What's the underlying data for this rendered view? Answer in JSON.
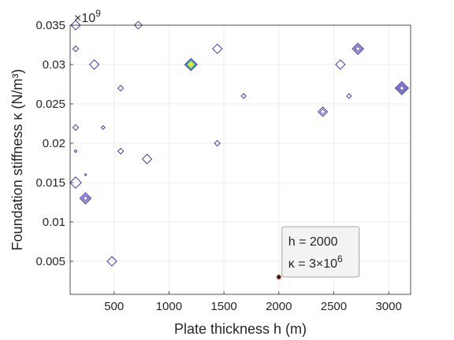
{
  "chart_data": {
    "type": "contour",
    "xlabel": "Plate thickness h (m)",
    "ylabel": "Foundation stiffness κ (N/m³)",
    "y_exponent_label": "×10",
    "y_exponent_power": "9",
    "xlim": [
      100,
      3200
    ],
    "ylim": [
      0.0008,
      0.035
    ],
    "xticks": [
      500,
      1000,
      1500,
      2000,
      2500,
      3000
    ],
    "xtick_labels": [
      "500",
      "1000",
      "1500",
      "2000",
      "2500",
      "3000"
    ],
    "yticks": [
      0.005,
      0.01,
      0.015,
      0.02,
      0.025,
      0.03,
      0.035
    ],
    "ytick_labels": [
      "0.005",
      "0.01",
      "0.015",
      "0.02",
      "0.025",
      "0.03",
      "0.035"
    ],
    "grid": true,
    "colormap": [
      "#3b2ca8",
      "#2c7fb8",
      "#26b89b",
      "#b5d934",
      "#f7e630"
    ],
    "peaks": [
      {
        "h": 150,
        "k": 0.035,
        "rings": 1,
        "size": 1
      },
      {
        "h": 150,
        "k": 0.032,
        "rings": 1,
        "size": 0.6
      },
      {
        "h": 320,
        "k": 0.03,
        "rings": 1,
        "size": 1
      },
      {
        "h": 720,
        "k": 0.035,
        "rings": 1,
        "size": 0.8
      },
      {
        "h": 1200,
        "k": 0.03,
        "rings": 5,
        "size": 1.3
      },
      {
        "h": 1440,
        "k": 0.032,
        "rings": 1,
        "size": 1
      },
      {
        "h": 560,
        "k": 0.027,
        "rings": 1,
        "size": 0.6
      },
      {
        "h": 150,
        "k": 0.022,
        "rings": 1,
        "size": 0.6
      },
      {
        "h": 400,
        "k": 0.022,
        "rings": 1,
        "size": 0.4
      },
      {
        "h": 150,
        "k": 0.019,
        "rings": 1,
        "size": 0.3
      },
      {
        "h": 560,
        "k": 0.019,
        "rings": 1,
        "size": 0.6
      },
      {
        "h": 800,
        "k": 0.018,
        "rings": 1,
        "size": 1
      },
      {
        "h": 1440,
        "k": 0.02,
        "rings": 1,
        "size": 0.6
      },
      {
        "h": 1680,
        "k": 0.026,
        "rings": 1,
        "size": 0.5
      },
      {
        "h": 150,
        "k": 0.015,
        "rings": 1,
        "size": 1.2
      },
      {
        "h": 240,
        "k": 0.013,
        "rings": 3,
        "size": 1.2
      },
      {
        "h": 240,
        "k": 0.016,
        "rings": 1,
        "size": 0.2
      },
      {
        "h": 480,
        "k": 0.005,
        "rings": 1,
        "size": 1
      },
      {
        "h": 2400,
        "k": 0.024,
        "rings": 2,
        "size": 1
      },
      {
        "h": 2560,
        "k": 0.03,
        "rings": 1,
        "size": 1
      },
      {
        "h": 2640,
        "k": 0.026,
        "rings": 1,
        "size": 0.5
      },
      {
        "h": 2720,
        "k": 0.032,
        "rings": 3,
        "size": 1.2
      },
      {
        "h": 3120,
        "k": 0.027,
        "rings": 4,
        "size": 1.4
      }
    ],
    "datatip": {
      "h": 2000,
      "k": 0.003,
      "line1": "h = 2000",
      "line2_prefix": "κ = 3×10",
      "line2_power": "6"
    }
  }
}
